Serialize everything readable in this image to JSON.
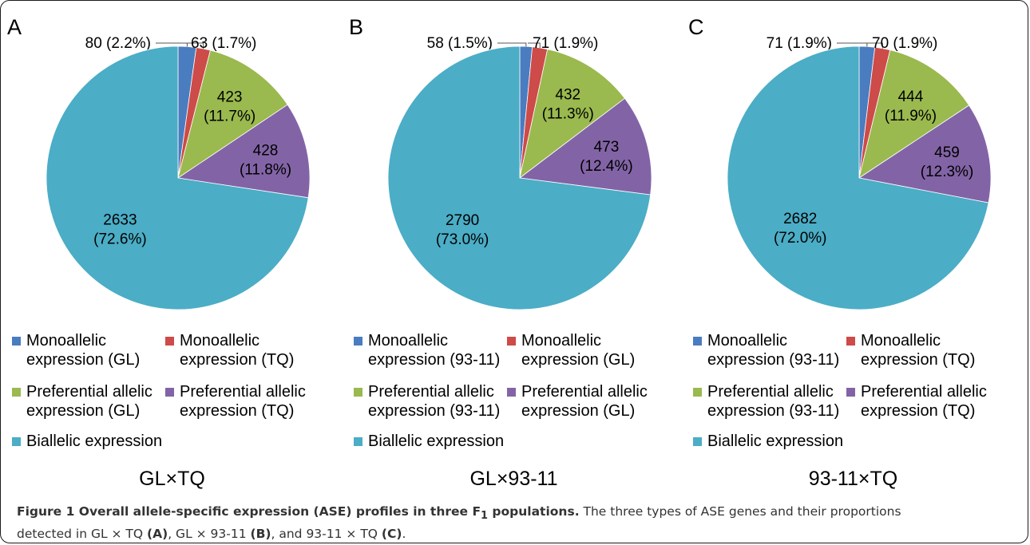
{
  "colors": {
    "mono1": "#4a7cc0",
    "mono2": "#cd4b48",
    "pref1": "#9ab94f",
    "pref2": "#8264a6",
    "bi": "#4badc6"
  },
  "chart_data": [
    {
      "type": "pie",
      "panel": "A",
      "cross": "GL×TQ",
      "slices": [
        {
          "label": "Monoallelic expression (GL)",
          "value": 80,
          "percent": "2.2%",
          "display": "80 (2.2%)",
          "color": "#4a7cc0"
        },
        {
          "label": "Monoallelic expression (TQ)",
          "value": 63,
          "percent": "1.7%",
          "display": "63 (1.7%)",
          "color": "#cd4b48"
        },
        {
          "label": "Preferential allelic expression (GL)",
          "value": 423,
          "percent": "11.7%",
          "display_value": "423",
          "display_pct": "(11.7%)",
          "color": "#9ab94f"
        },
        {
          "label": "Preferential allelic expression (TQ)",
          "value": 428,
          "percent": "11.8%",
          "display_value": "428",
          "display_pct": "(11.8%)",
          "color": "#8264a6"
        },
        {
          "label": "Biallelic expression",
          "value": 2633,
          "percent": "72.6%",
          "display_value": "2633",
          "display_pct": "(72.6%)",
          "color": "#4badc6"
        }
      ],
      "legend": [
        {
          "text": "Monoallelic\nexpression (GL)",
          "color": "#4a7cc0"
        },
        {
          "text": "Monoallelic\nexpression (TQ)",
          "color": "#cd4b48"
        },
        {
          "text": "Preferential allelic\nexpression (GL)",
          "color": "#9ab94f"
        },
        {
          "text": "Preferential allelic\nexpression (TQ)",
          "color": "#8264a6"
        },
        {
          "text": "Biallelic expression",
          "color": "#4badc6"
        }
      ]
    },
    {
      "type": "pie",
      "panel": "B",
      "cross": "GL×93-11",
      "slices": [
        {
          "label": "Monoallelic expression (93-11)",
          "value": 58,
          "percent": "1.5%",
          "display": "58 (1.5%)",
          "color": "#4a7cc0"
        },
        {
          "label": "Monoallelic expression (GL)",
          "value": 71,
          "percent": "1.9%",
          "display": "71 (1.9%)",
          "color": "#cd4b48"
        },
        {
          "label": "Preferential allelic expression (93-11)",
          "value": 432,
          "percent": "11.3%",
          "display_value": "432",
          "display_pct": "(11.3%)",
          "color": "#9ab94f"
        },
        {
          "label": "Preferential allelic expression (GL)",
          "value": 473,
          "percent": "12.4%",
          "display_value": "473",
          "display_pct": "(12.4%)",
          "color": "#8264a6"
        },
        {
          "label": "Biallelic expression",
          "value": 2790,
          "percent": "73.0%",
          "display_value": "2790",
          "display_pct": "(73.0%)",
          "color": "#4badc6"
        }
      ],
      "legend": [
        {
          "text": "Monoallelic\nexpression (93-11)",
          "color": "#4a7cc0"
        },
        {
          "text": "Monoallelic\nexpression (GL)",
          "color": "#cd4b48"
        },
        {
          "text": "Preferential allelic\nexpression (93-11)",
          "color": "#9ab94f"
        },
        {
          "text": "Preferential allelic\nexpression (GL)",
          "color": "#8264a6"
        },
        {
          "text": "Biallelic expression",
          "color": "#4badc6"
        }
      ]
    },
    {
      "type": "pie",
      "panel": "C",
      "cross": "93-11×TQ",
      "slices": [
        {
          "label": "Monoallelic expression (93-11)",
          "value": 71,
          "percent": "1.9%",
          "display": "71 (1.9%)",
          "color": "#4a7cc0"
        },
        {
          "label": "Monoallelic expression (TQ)",
          "value": 70,
          "percent": "1.9%",
          "display": "70 (1.9%)",
          "color": "#cd4b48"
        },
        {
          "label": "Preferential allelic expression (93-11)",
          "value": 444,
          "percent": "11.9%",
          "display_value": "444",
          "display_pct": "(11.9%)",
          "color": "#9ab94f"
        },
        {
          "label": "Preferential allelic expression (TQ)",
          "value": 459,
          "percent": "12.3%",
          "display_value": "459",
          "display_pct": "(12.3%)",
          "color": "#8264a6"
        },
        {
          "label": "Biallelic expression",
          "value": 2682,
          "percent": "72.0%",
          "display_value": "2682",
          "display_pct": "(72.0%)",
          "color": "#4badc6"
        }
      ],
      "legend": [
        {
          "text": "Monoallelic\nexpression (93-11)",
          "color": "#4a7cc0"
        },
        {
          "text": "Monoallelic\nexpression (TQ)",
          "color": "#cd4b48"
        },
        {
          "text": "Preferential allelic\nexpression (93-11)",
          "color": "#9ab94f"
        },
        {
          "text": "Preferential allelic\nexpression (TQ)",
          "color": "#8264a6"
        },
        {
          "text": "Biallelic expression",
          "color": "#4badc6"
        }
      ]
    }
  ],
  "caption": {
    "title_prefix": "Figure 1 Overall allele-specific expression (ASE) profiles in three F",
    "title_subscript": "1",
    "title_suffix": " populations.",
    "line1_text": " The three types of ASE genes and their proportions",
    "line2_part1": "detected in GL × TQ ",
    "ref_a": "(A)",
    "line2_part2": ", GL × 93-11 ",
    "ref_b": "(B)",
    "line2_part3": ", and 93-11 × TQ ",
    "ref_c": "(C)",
    "line2_end": "."
  }
}
